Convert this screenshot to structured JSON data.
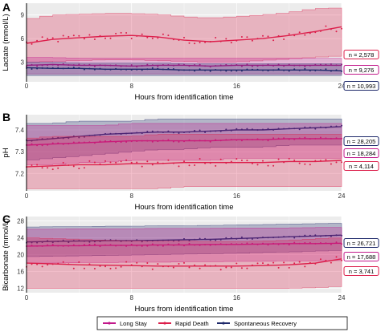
{
  "colors": {
    "long_stay": "#c2188b",
    "rapid_death": "#dc1f4b",
    "spontaneous_recovery": "#1f2a6b",
    "panel_bg": "#ececec",
    "grid": "#ffffff"
  },
  "legend": {
    "items": [
      {
        "key": "long_stay",
        "label": "Long Stay"
      },
      {
        "key": "rapid_death",
        "label": "Rapid Death"
      },
      {
        "key": "spontaneous_recovery",
        "label": "Spontaneous Recovery"
      }
    ]
  },
  "chart_data": [
    {
      "type": "line",
      "panel": "A",
      "xlabel": "Hours from identification time",
      "ylabel": "Lactate (mmol/L)",
      "xlim": [
        0,
        24
      ],
      "ylim": [
        0.5,
        10.5
      ],
      "x_ticks": [
        0,
        8,
        16,
        24
      ],
      "y_ticks": [
        3,
        6,
        9
      ],
      "grid": true,
      "series": [
        {
          "key": "rapid_death",
          "n_label": "n = 2,578",
          "x": [
            0,
            2,
            4,
            6,
            8,
            10,
            12,
            14,
            16,
            18,
            20,
            22,
            24
          ],
          "y": [
            5.4,
            5.9,
            6.1,
            6.3,
            6.4,
            6.2,
            5.8,
            5.6,
            5.8,
            6.0,
            6.4,
            6.9,
            7.5
          ],
          "upper": [
            8.4,
            9.0,
            9.1,
            9.2,
            9.2,
            9.1,
            8.8,
            8.6,
            8.8,
            9.0,
            9.3,
            9.8,
            9.9
          ],
          "lower": [
            3.0,
            3.1,
            3.2,
            3.3,
            3.3,
            3.2,
            3.1,
            3.0,
            3.0,
            3.2,
            3.4,
            3.6,
            3.8
          ]
        },
        {
          "key": "long_stay",
          "n_label": "n = 9,276",
          "x": [
            0,
            2,
            4,
            6,
            8,
            10,
            12,
            14,
            16,
            18,
            20,
            22,
            24
          ],
          "y": [
            2.6,
            2.7,
            2.6,
            2.6,
            2.5,
            2.6,
            2.6,
            2.5,
            2.6,
            2.6,
            2.6,
            2.6,
            2.6
          ],
          "upper": [
            3.6,
            3.6,
            3.5,
            3.5,
            3.5,
            3.5,
            3.5,
            3.5,
            3.5,
            3.5,
            3.5,
            3.5,
            3.5
          ],
          "lower": [
            1.5,
            1.5,
            1.5,
            1.5,
            1.5,
            1.5,
            1.5,
            1.5,
            1.5,
            1.5,
            1.5,
            1.5,
            1.5
          ]
        },
        {
          "key": "spontaneous_recovery",
          "n_label": "n = 10,993",
          "x": [
            0,
            2,
            4,
            6,
            8,
            10,
            12,
            14,
            16,
            18,
            20,
            22,
            24
          ],
          "y": [
            2.3,
            2.2,
            2.2,
            2.1,
            2.1,
            2.1,
            2.0,
            2.0,
            2.0,
            2.0,
            2.0,
            2.0,
            1.9
          ],
          "upper": [
            3.0,
            3.0,
            2.9,
            2.9,
            2.9,
            2.9,
            2.8,
            2.8,
            2.8,
            2.8,
            2.8,
            2.8,
            2.8
          ],
          "lower": [
            1.3,
            1.3,
            1.3,
            1.3,
            1.3,
            1.3,
            1.3,
            1.3,
            1.3,
            1.3,
            1.3,
            1.3,
            1.3
          ]
        }
      ]
    },
    {
      "type": "line",
      "panel": "B",
      "xlabel": "Hours from identification time",
      "ylabel": "pH",
      "xlim": [
        0,
        24
      ],
      "ylim": [
        7.12,
        7.47
      ],
      "x_ticks": [
        0,
        8,
        16,
        24
      ],
      "y_ticks": [
        7.2,
        7.3,
        7.4
      ],
      "grid": true,
      "series": [
        {
          "key": "spontaneous_recovery",
          "n_label": "n = 28,205",
          "x": [
            0,
            2,
            4,
            6,
            8,
            10,
            12,
            14,
            16,
            18,
            20,
            22,
            24
          ],
          "y": [
            7.35,
            7.36,
            7.37,
            7.38,
            7.385,
            7.39,
            7.39,
            7.395,
            7.4,
            7.4,
            7.405,
            7.41,
            7.415
          ],
          "upper": [
            7.43,
            7.43,
            7.44,
            7.44,
            7.44,
            7.45,
            7.45,
            7.45,
            7.45,
            7.45,
            7.45,
            7.45,
            7.45
          ],
          "lower": [
            7.26,
            7.27,
            7.28,
            7.29,
            7.3,
            7.31,
            7.31,
            7.32,
            7.32,
            7.32,
            7.33,
            7.33,
            7.33
          ]
        },
        {
          "key": "long_stay",
          "n_label": "n = 18,284",
          "x": [
            0,
            2,
            4,
            6,
            8,
            10,
            12,
            14,
            16,
            18,
            20,
            22,
            24
          ],
          "y": [
            7.33,
            7.335,
            7.34,
            7.345,
            7.35,
            7.35,
            7.35,
            7.35,
            7.355,
            7.355,
            7.36,
            7.36,
            7.36
          ],
          "upper": [
            7.42,
            7.42,
            7.42,
            7.42,
            7.43,
            7.43,
            7.43,
            7.43,
            7.43,
            7.43,
            7.43,
            7.43,
            7.43
          ],
          "lower": [
            7.24,
            7.24,
            7.25,
            7.25,
            7.26,
            7.26,
            7.26,
            7.26,
            7.27,
            7.27,
            7.27,
            7.27,
            7.27
          ]
        },
        {
          "key": "rapid_death",
          "n_label": "n = 4,114",
          "x": [
            0,
            2,
            4,
            6,
            8,
            10,
            12,
            14,
            16,
            18,
            20,
            22,
            24
          ],
          "y": [
            7.23,
            7.235,
            7.24,
            7.24,
            7.245,
            7.245,
            7.25,
            7.25,
            7.25,
            7.25,
            7.255,
            7.255,
            7.26
          ],
          "upper": [
            7.36,
            7.37,
            7.37,
            7.37,
            7.37,
            7.38,
            7.38,
            7.38,
            7.38,
            7.38,
            7.38,
            7.38,
            7.38
          ],
          "lower": [
            7.13,
            7.13,
            7.13,
            7.13,
            7.13,
            7.13,
            7.14,
            7.14,
            7.14,
            7.14,
            7.14,
            7.14,
            7.14
          ]
        }
      ]
    },
    {
      "type": "line",
      "panel": "C",
      "xlabel": "Hours from identification time",
      "ylabel": "Bicarbonate (mmol/L)",
      "xlim": [
        0,
        24
      ],
      "ylim": [
        11,
        29
      ],
      "x_ticks": [
        0,
        8,
        16,
        24
      ],
      "y_ticks": [
        12,
        16,
        20,
        24,
        28
      ],
      "grid": true,
      "series": [
        {
          "key": "spontaneous_recovery",
          "n_label": "n = 26,721",
          "x": [
            0,
            2,
            4,
            6,
            8,
            10,
            12,
            14,
            16,
            18,
            20,
            22,
            24
          ],
          "y": [
            23.0,
            23.1,
            23.2,
            23.3,
            23.3,
            23.4,
            23.5,
            23.6,
            23.8,
            24.0,
            24.2,
            24.4,
            24.6
          ],
          "upper": [
            26.5,
            26.6,
            26.6,
            26.7,
            26.7,
            26.8,
            26.8,
            26.9,
            27.0,
            27.1,
            27.2,
            27.3,
            27.4
          ],
          "lower": [
            19.5,
            19.6,
            19.7,
            19.8,
            19.9,
            20.0,
            20.1,
            20.2,
            20.3,
            20.5,
            20.6,
            20.8,
            21.0
          ]
        },
        {
          "key": "long_stay",
          "n_label": "n = 17,688",
          "x": [
            0,
            2,
            4,
            6,
            8,
            10,
            12,
            14,
            16,
            18,
            20,
            22,
            24
          ],
          "y": [
            22.0,
            22.1,
            22.1,
            22.2,
            22.2,
            22.3,
            22.3,
            22.4,
            22.4,
            22.5,
            22.6,
            22.6,
            22.7
          ],
          "upper": [
            26.0,
            26.0,
            26.1,
            26.1,
            26.1,
            26.2,
            26.2,
            26.2,
            26.3,
            26.3,
            26.3,
            26.4,
            26.4
          ],
          "lower": [
            18.0,
            18.0,
            18.1,
            18.1,
            18.2,
            18.2,
            18.3,
            18.3,
            18.4,
            18.4,
            18.5,
            18.5,
            18.6
          ]
        },
        {
          "key": "rapid_death",
          "n_label": "n = 3,741",
          "x": [
            0,
            2,
            4,
            6,
            8,
            10,
            12,
            14,
            16,
            18,
            20,
            22,
            24
          ],
          "y": [
            18.0,
            17.8,
            17.6,
            17.5,
            17.4,
            17.3,
            17.3,
            17.3,
            17.3,
            17.4,
            17.6,
            18.0,
            19.0
          ],
          "upper": [
            24.0,
            23.8,
            23.6,
            23.4,
            23.3,
            23.2,
            23.2,
            23.1,
            23.1,
            23.2,
            23.4,
            23.7,
            24.0
          ],
          "lower": [
            12.0,
            12.0,
            12.0,
            12.0,
            12.0,
            12.0,
            12.0,
            12.0,
            12.0,
            12.0,
            12.0,
            12.2,
            12.5
          ]
        }
      ]
    }
  ]
}
